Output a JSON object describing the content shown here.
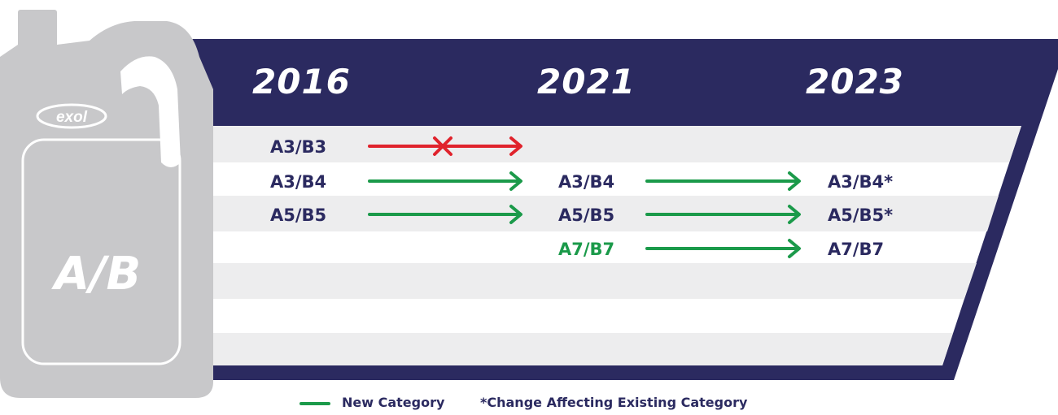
{
  "jug": {
    "logo_text": "exol",
    "label": "A/B"
  },
  "years": [
    "2016",
    "2021",
    "2023"
  ],
  "rows": [
    {
      "y2016": "A3/B3",
      "arrow1": "discontinued",
      "y2021": "",
      "arrow2": "none",
      "y2023": ""
    },
    {
      "y2016": "A3/B4",
      "arrow1": "continues",
      "y2021": "A3/B4",
      "arrow2": "continues",
      "y2023": "A3/B4*"
    },
    {
      "y2016": "A5/B5",
      "arrow1": "continues",
      "y2021": "A5/B5",
      "arrow2": "continues",
      "y2023": "A5/B5*"
    },
    {
      "y2016": "",
      "arrow1": "none",
      "y2021": "A7/B7",
      "y2021_new": true,
      "arrow2": "continues",
      "y2023": "A7/B7"
    }
  ],
  "legend": {
    "new_category": "New Category",
    "change_note": "*Change Affecting Existing Category"
  },
  "colors": {
    "navy": "#2b2a60",
    "green": "#1b9a4a",
    "red": "#e0232c",
    "jug_grey": "#c8c8ca",
    "stripe": "#ededee"
  }
}
